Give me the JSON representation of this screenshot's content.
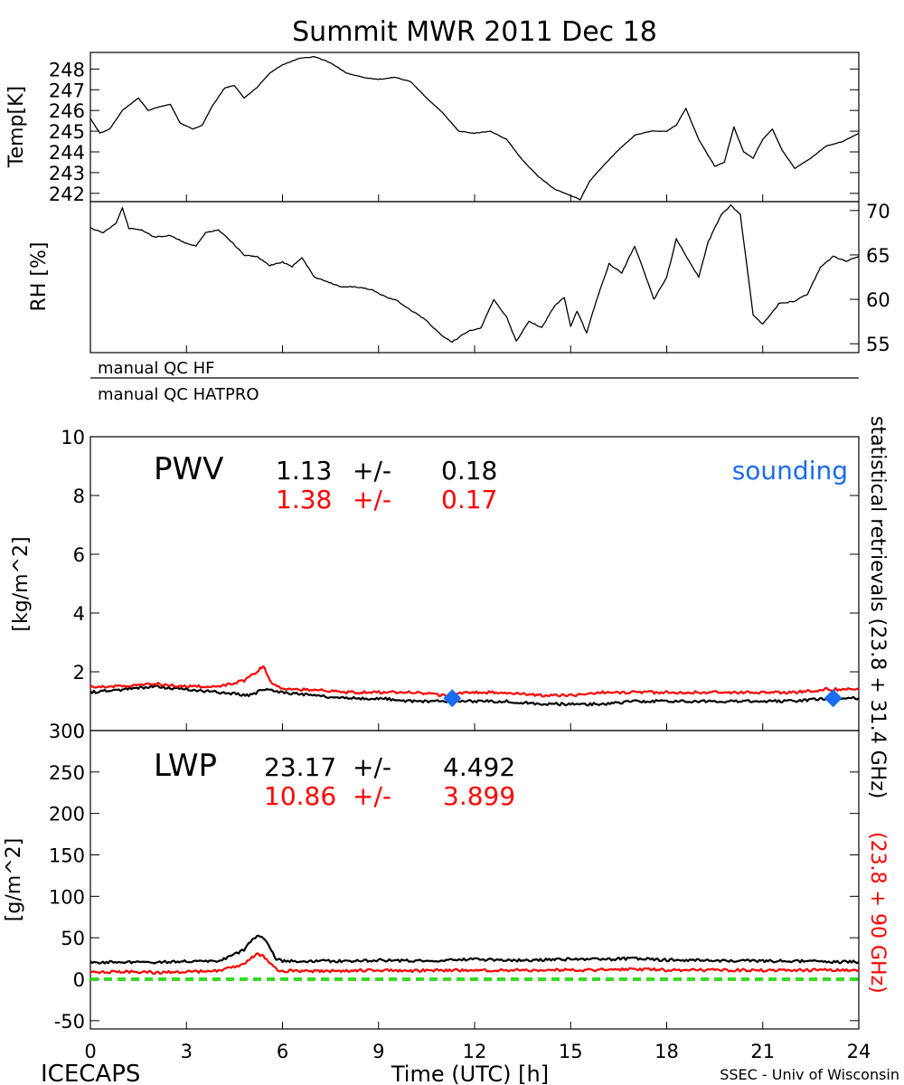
{
  "title": "Summit MWR 2011 Dec 18",
  "footer": {
    "left": "ICECAPS",
    "center": "Time (UTC) [h]",
    "right": "SSEC - Univ of Wisconsin"
  },
  "qc": {
    "hf": "manual QC HF",
    "hatpro": "manual QC HATPRO"
  },
  "right_labels": {
    "black": "statistical retrievals (23.8 + 31.4 GHz)",
    "red": "(23.8 + 90 GHz)"
  },
  "colors": {
    "black_series": "#000000",
    "red_series": "#ff0000",
    "sounding": "#1a6cf0",
    "zero_line": "#33dd22"
  },
  "chart_data": [
    {
      "type": "line",
      "panel": "temperature",
      "ylabel": "Temp[K]",
      "xlim": [
        0,
        24
      ],
      "ylim": [
        241.6,
        248.8
      ],
      "yticks": [
        242,
        243,
        244,
        245,
        246,
        247,
        248
      ],
      "series": [
        {
          "color": "#000000",
          "x": [
            0,
            0.3,
            0.6,
            1.0,
            1.5,
            1.8,
            2.2,
            2.5,
            2.8,
            3.2,
            3.5,
            3.8,
            4.2,
            4.5,
            4.8,
            5.2,
            5.6,
            6.0,
            6.5,
            7.0,
            7.5,
            8.0,
            8.5,
            9.0,
            9.5,
            10.0,
            10.5,
            11.0,
            11.5,
            12.0,
            12.5,
            13.0,
            13.5,
            14.0,
            14.5,
            15.0,
            15.3,
            15.6,
            16.0,
            16.5,
            17.0,
            17.5,
            18.0,
            18.3,
            18.6,
            19.0,
            19.5,
            19.8,
            20.1,
            20.4,
            20.7,
            21.0,
            21.3,
            21.6,
            22.0,
            22.5,
            23.0,
            23.5,
            24.0
          ],
          "y": [
            245.6,
            244.9,
            245.1,
            246.0,
            246.6,
            246.0,
            246.2,
            246.3,
            245.4,
            245.1,
            245.3,
            246.2,
            247.1,
            247.2,
            246.6,
            247.1,
            247.8,
            248.2,
            248.5,
            248.6,
            248.3,
            247.8,
            247.6,
            247.5,
            247.6,
            247.4,
            246.6,
            245.9,
            245.0,
            244.9,
            245.0,
            244.6,
            243.6,
            242.8,
            242.2,
            241.9,
            241.7,
            242.6,
            243.3,
            244.1,
            244.8,
            245.0,
            245.0,
            245.3,
            246.1,
            244.6,
            243.3,
            243.5,
            245.2,
            244.0,
            243.7,
            244.6,
            245.1,
            244.1,
            243.2,
            243.7,
            244.3,
            244.5,
            244.9
          ]
        }
      ]
    },
    {
      "type": "line",
      "panel": "relative humidity",
      "ylabel": "RH [%]",
      "xlim": [
        0,
        24
      ],
      "ylim": [
        54,
        71
      ],
      "yticks": [
        55,
        60,
        65,
        70
      ],
      "series": [
        {
          "color": "#000000",
          "x": [
            0,
            0.4,
            0.8,
            1.0,
            1.2,
            1.6,
            2.0,
            2.5,
            3.0,
            3.3,
            3.6,
            4.0,
            4.4,
            4.8,
            5.2,
            5.6,
            6.0,
            6.3,
            6.6,
            7.0,
            7.4,
            7.8,
            8.3,
            8.8,
            9.2,
            9.6,
            10.0,
            10.5,
            11.0,
            11.3,
            11.8,
            12.2,
            12.6,
            13.0,
            13.3,
            13.7,
            14.1,
            14.5,
            14.8,
            15.0,
            15.2,
            15.5,
            15.8,
            16.2,
            16.6,
            17.0,
            17.3,
            17.6,
            18.0,
            18.3,
            18.7,
            19.0,
            19.3,
            19.7,
            20.0,
            20.3,
            20.7,
            21.0,
            21.5,
            22.0,
            22.4,
            22.8,
            23.2,
            23.6,
            24.0
          ],
          "y": [
            68.0,
            67.5,
            68.5,
            70.3,
            68.0,
            67.8,
            67.0,
            67.2,
            66.3,
            66.0,
            67.5,
            67.8,
            66.5,
            65.0,
            64.8,
            63.8,
            64.2,
            63.7,
            64.7,
            62.5,
            62.0,
            61.4,
            61.4,
            61.1,
            60.3,
            59.8,
            58.8,
            57.6,
            55.8,
            55.2,
            56.4,
            56.8,
            60.0,
            58.0,
            55.3,
            57.5,
            56.8,
            59.3,
            60.2,
            57.0,
            58.7,
            56.2,
            59.8,
            64.0,
            63.0,
            66.0,
            63.0,
            60.0,
            62.5,
            66.8,
            64.3,
            62.5,
            66.5,
            69.5,
            70.6,
            69.5,
            58.3,
            57.2,
            59.5,
            59.8,
            60.6,
            63.6,
            64.8,
            64.3,
            64.8
          ]
        }
      ]
    },
    {
      "type": "line",
      "panel": "PWV",
      "title": "PWV",
      "ylabel": "[kg/m^2]",
      "xlim": [
        0,
        24
      ],
      "ylim": [
        0,
        10
      ],
      "yticks": [
        0,
        2,
        4,
        6,
        8,
        10
      ],
      "stats": [
        {
          "color": "#000000",
          "mean": "1.13",
          "pm": "+/-",
          "std": "0.18"
        },
        {
          "color": "#ff0000",
          "mean": "1.38",
          "pm": "+/-",
          "std": "0.17"
        }
      ],
      "legend": "sounding",
      "series": [
        {
          "color": "#000000",
          "x": [
            0,
            1,
            2,
            3,
            4,
            5,
            5.4,
            6,
            7,
            8,
            9,
            10,
            11,
            12,
            13,
            14,
            15,
            16,
            17,
            18,
            19,
            20,
            21,
            22,
            23,
            24
          ],
          "y": [
            1.3,
            1.4,
            1.5,
            1.4,
            1.3,
            1.2,
            1.4,
            1.3,
            1.2,
            1.1,
            1.1,
            1.0,
            1.0,
            1.0,
            1.0,
            0.9,
            0.9,
            0.9,
            1.0,
            1.0,
            1.0,
            1.0,
            1.0,
            1.0,
            1.1,
            1.1
          ]
        },
        {
          "color": "#ff0000",
          "x": [
            0,
            1,
            2,
            3,
            4,
            4.8,
            5.2,
            5.4,
            5.6,
            6,
            7,
            8,
            9,
            10,
            11,
            12,
            13,
            14,
            15,
            16,
            17,
            18,
            19,
            20,
            21,
            22,
            23,
            24
          ],
          "y": [
            1.5,
            1.5,
            1.6,
            1.5,
            1.5,
            1.7,
            2.0,
            2.2,
            1.7,
            1.4,
            1.4,
            1.3,
            1.3,
            1.3,
            1.2,
            1.3,
            1.3,
            1.2,
            1.2,
            1.3,
            1.3,
            1.3,
            1.3,
            1.3,
            1.3,
            1.3,
            1.4,
            1.4
          ]
        },
        {
          "name": "sounding",
          "color": "#1a6cf0",
          "marker": "diamond",
          "x": [
            11.3,
            23.2
          ],
          "y": [
            1.1,
            1.1
          ]
        }
      ]
    },
    {
      "type": "line",
      "panel": "LWP",
      "title": "LWP",
      "ylabel": "[g/m^2]",
      "xlabel": "Time (UTC) [h]",
      "xlim": [
        0,
        24
      ],
      "xticks": [
        0,
        3,
        6,
        9,
        12,
        15,
        18,
        21,
        24
      ],
      "ylim": [
        -60,
        300
      ],
      "yticks": [
        -50,
        0,
        50,
        100,
        150,
        200,
        250,
        300
      ],
      "stats": [
        {
          "color": "#000000",
          "mean": "23.17",
          "pm": "+/-",
          "std": "4.492"
        },
        {
          "color": "#ff0000",
          "mean": "10.86",
          "pm": "+/-",
          "std": "3.899"
        }
      ],
      "series": [
        {
          "color": "#000000",
          "x": [
            0,
            1,
            2,
            3,
            4,
            4.8,
            5.0,
            5.2,
            5.4,
            5.6,
            5.8,
            6,
            7,
            8,
            9,
            10,
            11,
            12,
            13,
            14,
            15,
            16,
            17,
            18,
            19,
            20,
            21,
            22,
            23,
            24
          ],
          "y": [
            20,
            21,
            20,
            22,
            22,
            35,
            45,
            52,
            50,
            40,
            24,
            22,
            22,
            22,
            23,
            22,
            23,
            24,
            23,
            23,
            24,
            24,
            25,
            23,
            23,
            22,
            22,
            22,
            21,
            21
          ]
        },
        {
          "color": "#ff0000",
          "x": [
            0,
            1,
            2,
            3,
            4,
            4.8,
            5.0,
            5.2,
            5.4,
            5.6,
            5.8,
            6,
            7,
            8,
            9,
            10,
            11,
            12,
            13,
            14,
            15,
            16,
            17,
            18,
            19,
            20,
            21,
            22,
            23,
            24
          ],
          "y": [
            8,
            9,
            8,
            9,
            10,
            18,
            25,
            30,
            28,
            20,
            12,
            10,
            10,
            10,
            11,
            10,
            11,
            11,
            11,
            11,
            11,
            11,
            12,
            11,
            11,
            11,
            11,
            11,
            11,
            11
          ]
        },
        {
          "color": "#33dd22",
          "dashed": true,
          "x": [
            0,
            24
          ],
          "y": [
            0,
            0
          ]
        }
      ]
    }
  ]
}
